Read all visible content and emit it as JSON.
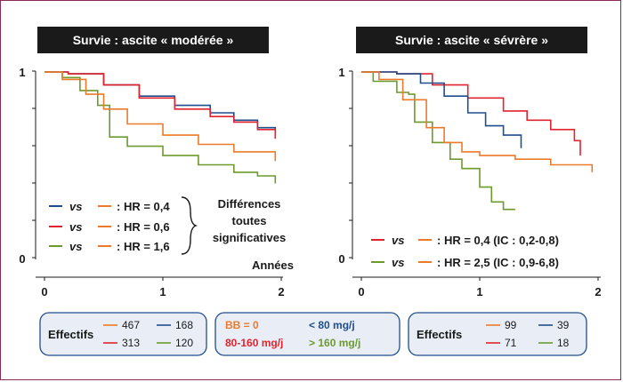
{
  "colors": {
    "blue": "#1f4e8c",
    "red": "#e0242f",
    "green": "#6d9a2f",
    "orange": "#ec7a2c",
    "dark": "#1a1a1a"
  },
  "chart_data": [
    {
      "type": "line",
      "title": "Survie : ascite « modérée »",
      "xlabel": "Années",
      "xlim": [
        0,
        2
      ],
      "ylim": [
        0,
        1
      ],
      "x_ticks": [
        "0",
        "1",
        "2"
      ],
      "y_ticks": [
        "0",
        "1"
      ],
      "series": [
        {
          "color": "blue",
          "points": [
            [
              0,
              1
            ],
            [
              0.2,
              0.99
            ],
            [
              0.5,
              0.93
            ],
            [
              0.8,
              0.87
            ],
            [
              1.1,
              0.82
            ],
            [
              1.4,
              0.78
            ],
            [
              1.6,
              0.74
            ],
            [
              1.8,
              0.7
            ],
            [
              1.95,
              0.66
            ]
          ]
        },
        {
          "color": "red",
          "points": [
            [
              0,
              1
            ],
            [
              0.2,
              0.99
            ],
            [
              0.5,
              0.93
            ],
            [
              0.8,
              0.86
            ],
            [
              1.1,
              0.8
            ],
            [
              1.4,
              0.76
            ],
            [
              1.6,
              0.73
            ],
            [
              1.8,
              0.69
            ],
            [
              1.95,
              0.64
            ]
          ]
        },
        {
          "color": "green",
          "points": [
            [
              0,
              1
            ],
            [
              0.15,
              0.97
            ],
            [
              0.3,
              0.9
            ],
            [
              0.45,
              0.82
            ],
            [
              0.55,
              0.65
            ],
            [
              0.7,
              0.6
            ],
            [
              1.0,
              0.55
            ],
            [
              1.3,
              0.5
            ],
            [
              1.6,
              0.46
            ],
            [
              1.8,
              0.44
            ],
            [
              1.95,
              0.4
            ]
          ]
        },
        {
          "color": "orange",
          "points": [
            [
              0,
              1
            ],
            [
              0.15,
              0.96
            ],
            [
              0.35,
              0.88
            ],
            [
              0.5,
              0.8
            ],
            [
              0.7,
              0.72
            ],
            [
              1.0,
              0.66
            ],
            [
              1.3,
              0.61
            ],
            [
              1.6,
              0.57
            ],
            [
              1.95,
              0.52
            ]
          ]
        }
      ],
      "legend": [
        {
          "vs": "vs",
          "color_a": "blue",
          "color_b": "orange",
          "text": ": HR = 0,4"
        },
        {
          "vs": "vs",
          "color_a": "red",
          "color_b": "orange",
          "text": ": HR = 0,6"
        },
        {
          "vs": "vs",
          "color_a": "green",
          "color_b": "orange",
          "text": ": HR = 1,6"
        }
      ],
      "annotation": [
        "Différences",
        "toutes",
        "significatives"
      ]
    },
    {
      "type": "line",
      "title": "Survie : ascite « sévrère »",
      "xlim": [
        0,
        2
      ],
      "ylim": [
        0,
        1
      ],
      "x_ticks": [
        "0",
        "1",
        "2"
      ],
      "y_ticks": [
        "0",
        "1"
      ],
      "series": [
        {
          "color": "red",
          "points": [
            [
              0,
              1
            ],
            [
              0.3,
              0.99
            ],
            [
              0.6,
              0.93
            ],
            [
              0.9,
              0.86
            ],
            [
              1.2,
              0.79
            ],
            [
              1.4,
              0.74
            ],
            [
              1.6,
              0.69
            ],
            [
              1.8,
              0.63
            ],
            [
              1.85,
              0.55
            ]
          ]
        },
        {
          "color": "blue",
          "points": [
            [
              0,
              1
            ],
            [
              0.3,
              0.99
            ],
            [
              0.5,
              0.94
            ],
            [
              0.7,
              0.87
            ],
            [
              0.9,
              0.78
            ],
            [
              1.05,
              0.71
            ],
            [
              1.2,
              0.66
            ],
            [
              1.35,
              0.59
            ]
          ]
        },
        {
          "color": "green",
          "points": [
            [
              0,
              1
            ],
            [
              0.1,
              0.95
            ],
            [
              0.3,
              0.89
            ],
            [
              0.4,
              0.88
            ],
            [
              0.45,
              0.73
            ],
            [
              0.6,
              0.62
            ],
            [
              0.75,
              0.53
            ],
            [
              0.85,
              0.48
            ],
            [
              1.0,
              0.38
            ],
            [
              1.1,
              0.3
            ],
            [
              1.2,
              0.26
            ],
            [
              1.3,
              0.26
            ]
          ]
        },
        {
          "color": "orange",
          "points": [
            [
              0,
              1
            ],
            [
              0.15,
              0.96
            ],
            [
              0.35,
              0.85
            ],
            [
              0.55,
              0.7
            ],
            [
              0.7,
              0.62
            ],
            [
              0.85,
              0.57
            ],
            [
              1.0,
              0.55
            ],
            [
              1.3,
              0.53
            ],
            [
              1.6,
              0.5
            ],
            [
              1.95,
              0.46
            ]
          ]
        }
      ],
      "legend": [
        {
          "vs": "vs",
          "color_a": "red",
          "color_b": "orange",
          "text": ": HR = 0,4 (IC : 0,2-0,8)"
        },
        {
          "vs": "vs",
          "color_a": "green",
          "color_b": "orange",
          "text": ": HR = 2,5 (IC : 0,9-6,8)"
        }
      ]
    }
  ],
  "boxes": {
    "left": {
      "label": "Effectifs",
      "entries": [
        {
          "value": "467",
          "color": "orange"
        },
        {
          "value": "168",
          "color": "blue"
        },
        {
          "value": "313",
          "color": "red"
        },
        {
          "value": "120",
          "color": "green"
        }
      ]
    },
    "middle": {
      "entries": [
        {
          "text": "BB = 0",
          "color": "orange"
        },
        {
          "text": "< 80 mg/j",
          "color": "blue"
        },
        {
          "text": "80-160 mg/j",
          "color": "red"
        },
        {
          "text": "> 160 mg/j",
          "color": "green"
        }
      ]
    },
    "right": {
      "label": "Effectifs",
      "entries": [
        {
          "value": "99",
          "color": "orange"
        },
        {
          "value": "39",
          "color": "blue"
        },
        {
          "value": "71",
          "color": "red"
        },
        {
          "value": "18",
          "color": "green"
        }
      ]
    }
  }
}
